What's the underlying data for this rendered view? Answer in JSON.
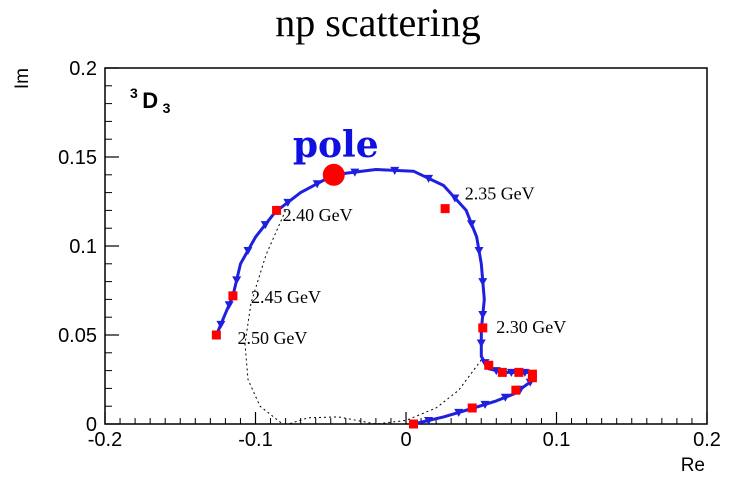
{
  "chart_data": {
    "type": "line",
    "title": "np scattering",
    "xlabel": "Re",
    "ylabel": "Im",
    "xlim": [
      -0.2,
      0.2
    ],
    "ylim": [
      0,
      0.2
    ],
    "xticks": [
      "-0.2",
      "-0.1",
      "0",
      "0.1",
      "0.2"
    ],
    "yticks": [
      "0",
      "0.05",
      "0.1",
      "0.15",
      "0.2"
    ],
    "grid": false,
    "partial_wave": {
      "sup": "3",
      "main": "D",
      "sub": "3"
    },
    "pole": {
      "label": "pole",
      "x": -0.048,
      "y": 0.14,
      "color": "#ff0000"
    },
    "series": [
      {
        "style": "solid-blue-with-triangles",
        "color": "#1f1fe0",
        "x": [
          0.005,
          0.025,
          0.045,
          0.06,
          0.072,
          0.08,
          0.085,
          0.083,
          0.075,
          0.065,
          0.055,
          0.05,
          0.05,
          0.052,
          0.05,
          0.047,
          0.04,
          0.025,
          0.005,
          -0.02,
          -0.048,
          -0.07,
          -0.087,
          -0.1,
          -0.11,
          -0.115,
          -0.12,
          -0.126
        ],
        "y": [
          0.0,
          0.004,
          0.009,
          0.013,
          0.017,
          0.022,
          0.025,
          0.029,
          0.029,
          0.029,
          0.031,
          0.038,
          0.053,
          0.07,
          0.09,
          0.105,
          0.12,
          0.134,
          0.142,
          0.143,
          0.14,
          0.13,
          0.119,
          0.105,
          0.09,
          0.072,
          0.062,
          0.05
        ]
      },
      {
        "style": "dashed-black",
        "color": "#000000",
        "x": [
          0.05,
          0.035,
          0.02,
          0.0,
          -0.02,
          -0.045,
          -0.065,
          -0.078
        ],
        "y": [
          0.036,
          0.019,
          0.009,
          0.002,
          0.0,
          0.004,
          0.0035,
          0.0
        ]
      },
      {
        "style": "dashed-black",
        "color": "#000000",
        "x": [
          -0.08,
          -0.093,
          -0.103,
          -0.107,
          -0.105,
          -0.097,
          -0.082
        ],
        "y": [
          0.12,
          0.095,
          0.068,
          0.045,
          0.025,
          0.01,
          0.0
        ]
      }
    ],
    "energy_markers": {
      "color": "#ff0000",
      "x": [
        0.005,
        0.044,
        0.073,
        0.084,
        0.084,
        0.075,
        0.064,
        0.055,
        0.051,
        0.026,
        -0.086,
        -0.115,
        -0.126
      ],
      "y": [
        0.0,
        0.009,
        0.019,
        0.026,
        0.028,
        0.029,
        0.029,
        0.033,
        0.054,
        0.121,
        0.12,
        0.072,
        0.05
      ]
    },
    "annotations": [
      {
        "text": "2.30 GeV",
        "x": 0.06,
        "y": 0.051
      },
      {
        "text": "2.35 GeV",
        "x": 0.039,
        "y": 0.126
      },
      {
        "text": "2.40 GeV",
        "x": -0.082,
        "y": 0.114
      },
      {
        "text": "2.45 GeV",
        "x": -0.103,
        "y": 0.068
      },
      {
        "text": "2.50 GeV",
        "x": -0.112,
        "y": 0.045
      }
    ]
  }
}
